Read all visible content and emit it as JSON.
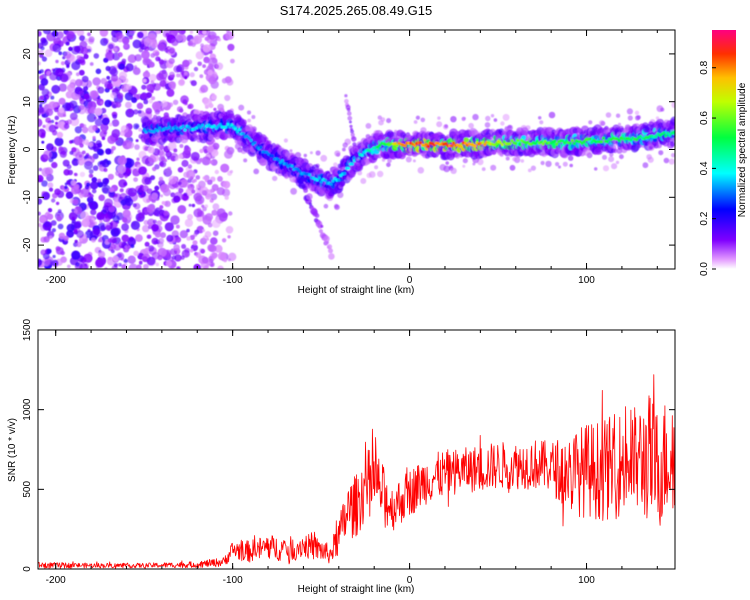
{
  "title": "S174.2025.265.08.49.G15",
  "chart_data": [
    {
      "type": "heatmap",
      "xlabel": "Height of straight line (km)",
      "ylabel": "Frequency (Hz)",
      "xlim": [
        -210,
        150
      ],
      "ylim": [
        -25,
        25
      ],
      "xticks": [
        -200,
        -100,
        0,
        100
      ],
      "yticks": [
        -20,
        -10,
        0,
        10,
        20
      ],
      "xtick_labels": [
        "-200",
        "-100",
        "0",
        "100"
      ],
      "ytick_labels": [
        "-20",
        "-10",
        "0",
        "10",
        "20"
      ],
      "colorbar": {
        "label": "Normalized spectral amplitude",
        "range": [
          0.0,
          0.95
        ],
        "ticks": [
          0.0,
          0.2,
          0.4,
          0.6,
          0.8
        ],
        "tick_labels": [
          "0.0",
          "0.2",
          "0.4",
          "0.6",
          "0.8"
        ],
        "colors": [
          "#ff00ff",
          "#0000ff",
          "#00ffff",
          "#00ff00",
          "#ffff00",
          "#ff0000"
        ]
      },
      "ridge": {
        "x": [
          -145,
          -125,
          -100,
          -90,
          -80,
          -70,
          -60,
          -50,
          -45,
          -40,
          -35,
          -30,
          -25,
          -20,
          -15,
          0,
          30,
          60,
          90,
          110,
          130,
          150
        ],
        "y": [
          4,
          4.5,
          5,
          2,
          -1,
          -3,
          -5,
          -6.5,
          -7,
          -6,
          -4,
          -2,
          -0.5,
          0.5,
          1,
          1,
          1,
          1.5,
          1.5,
          2,
          2.5,
          3.5
        ],
        "amplitude": [
          0.35,
          0.38,
          0.42,
          0.35,
          0.33,
          0.35,
          0.35,
          0.4,
          0.4,
          0.38,
          0.38,
          0.42,
          0.45,
          0.5,
          0.6,
          0.92,
          0.9,
          0.65,
          0.6,
          0.58,
          0.55,
          0.5
        ]
      }
    },
    {
      "type": "line",
      "xlabel": "Height of straight line (km)",
      "ylabel": "SNR (10 * v/v)",
      "xlim": [
        -210,
        150
      ],
      "ylim": [
        0,
        1500
      ],
      "xticks": [
        -200,
        -100,
        0,
        100
      ],
      "yticks": [
        0,
        500,
        1000,
        1500
      ],
      "xtick_labels": [
        "-200",
        "-100",
        "0",
        "100"
      ],
      "ytick_labels": [
        "0",
        "500",
        "1000",
        "1500"
      ],
      "color": "#ff0000",
      "series": [
        {
          "name": "SNR",
          "x": [
            -210,
            -180,
            -150,
            -120,
            -105,
            -100,
            -90,
            -80,
            -70,
            -60,
            -50,
            -45,
            -40,
            -35,
            -30,
            -25,
            -20,
            -10,
            0,
            10,
            20,
            30,
            40,
            50,
            60,
            70,
            80,
            90,
            100,
            110,
            120,
            130,
            135,
            140,
            145,
            150
          ],
          "y": [
            25,
            22,
            22,
            28,
            45,
            120,
            110,
            140,
            120,
            150,
            120,
            90,
            200,
            360,
            400,
            520,
            560,
            380,
            480,
            560,
            600,
            620,
            630,
            650,
            650,
            660,
            640,
            600,
            620,
            620,
            660,
            680,
            700,
            620,
            700,
            750
          ],
          "spread": [
            18,
            15,
            15,
            20,
            30,
            60,
            70,
            80,
            75,
            80,
            75,
            60,
            120,
            180,
            200,
            220,
            220,
            150,
            150,
            150,
            150,
            140,
            150,
            150,
            150,
            160,
            160,
            260,
            300,
            320,
            340,
            360,
            420,
            400,
            380,
            400
          ]
        }
      ]
    }
  ]
}
